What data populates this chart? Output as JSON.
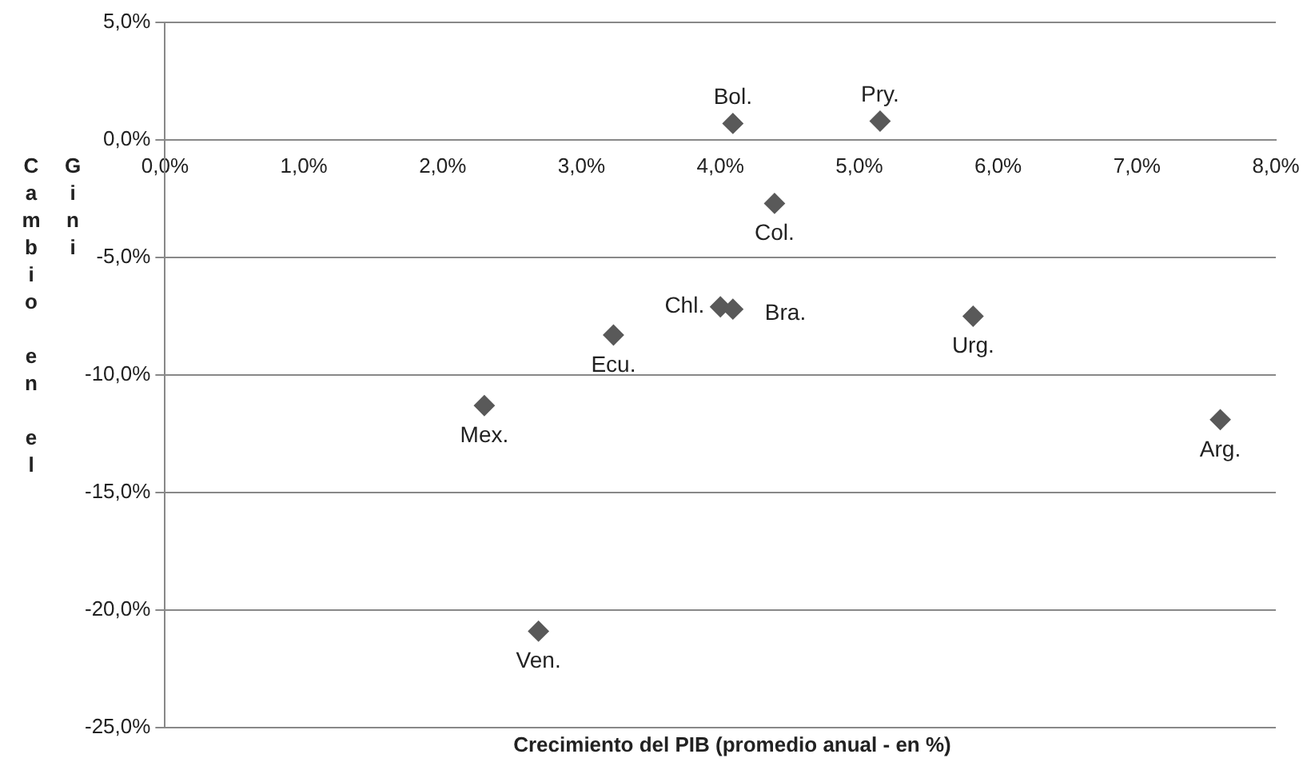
{
  "chart_data": {
    "type": "scatter",
    "xlabel": "Crecimiento del PIB (promedio anual - en %)",
    "ylabel": "Cambio en el Gini",
    "x": [
      4.09,
      5.15,
      4.39,
      4.0,
      4.09,
      5.82,
      3.23,
      2.3,
      2.69,
      7.6
    ],
    "series": [
      {
        "color": "#595959",
        "values": [
          0.7,
          0.8,
          -2.7,
          -7.1,
          -7.2,
          -7.5,
          -8.3,
          -11.3,
          -20.9,
          -11.9
        ]
      }
    ],
    "annotations": [
      {
        "text": "Bol.",
        "x": 4.09,
        "y": 0.7
      },
      {
        "text": "Pry.",
        "x": 5.15,
        "y": 0.8
      },
      {
        "text": "Col.",
        "x": 4.39,
        "y": -2.7
      },
      {
        "text": "Chl.",
        "x": 4.0,
        "y": -7.1
      },
      {
        "text": "Bra.",
        "x": 4.09,
        "y": -7.2
      },
      {
        "text": "Urg.",
        "x": 5.82,
        "y": -7.5
      },
      {
        "text": "Ecu.",
        "x": 3.23,
        "y": -8.3
      },
      {
        "text": "Mex.",
        "x": 2.3,
        "y": -11.3
      },
      {
        "text": "Ven.",
        "x": 2.69,
        "y": -20.9
      },
      {
        "text": "Arg.",
        "x": 7.6,
        "y": -11.9
      }
    ],
    "xlim": [
      0,
      8
    ],
    "xticks": [
      {
        "value": 0,
        "label": "0,0%"
      },
      {
        "value": 1,
        "label": "1,0%"
      },
      {
        "value": 2,
        "label": "2,0%"
      },
      {
        "value": 3,
        "label": "3,0%"
      },
      {
        "value": 4,
        "label": "4,0%"
      },
      {
        "value": 5,
        "label": "5,0%"
      },
      {
        "value": 6,
        "label": "6,0%"
      },
      {
        "value": 7,
        "label": "7,0%"
      },
      {
        "value": 8,
        "label": "8,0%"
      }
    ],
    "ylim": [
      -25,
      5
    ],
    "yticks": [
      {
        "value": -25,
        "label": "-25,0%"
      },
      {
        "value": -20,
        "label": "-20,0%"
      },
      {
        "value": -15,
        "label": "-15,0%"
      },
      {
        "value": -10,
        "label": "-10,0%"
      },
      {
        "value": -5,
        "label": "-5,0%"
      },
      {
        "value": 0,
        "label": "0,0%"
      },
      {
        "value": 5,
        "label": "5,0%"
      }
    ],
    "grid": "y",
    "legend": false,
    "marker": "diamond"
  }
}
